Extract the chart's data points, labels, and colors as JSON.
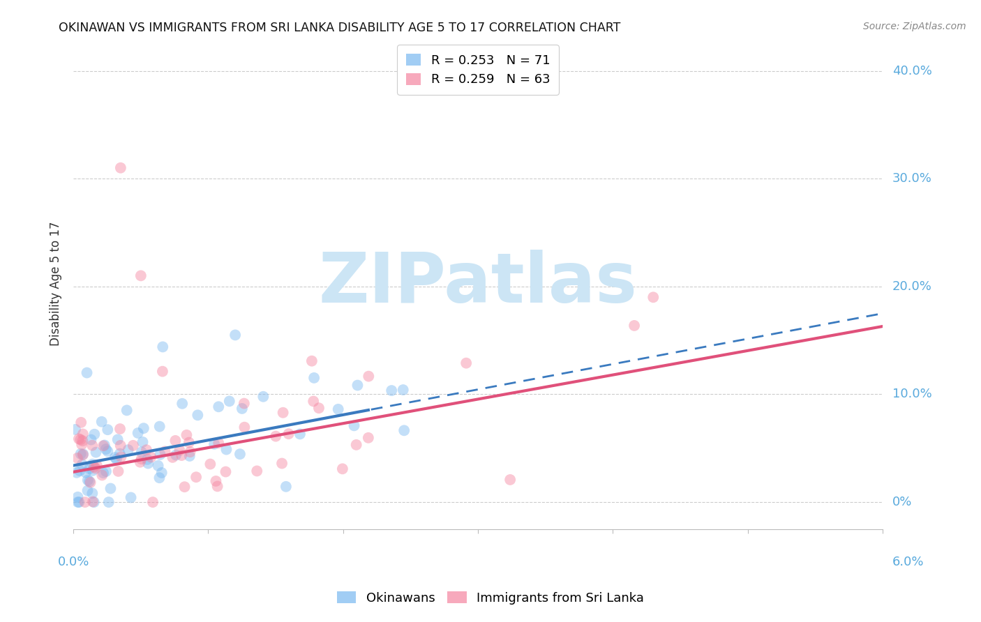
{
  "title": "OKINAWAN VS IMMIGRANTS FROM SRI LANKA DISABILITY AGE 5 TO 17 CORRELATION CHART",
  "source": "Source: ZipAtlas.com",
  "ylabel": "Disability Age 5 to 17",
  "ytick_labels": [
    "0%",
    "10.0%",
    "20.0%",
    "30.0%",
    "40.0%"
  ],
  "ytick_values": [
    0.0,
    0.1,
    0.2,
    0.3,
    0.4
  ],
  "xlim": [
    0.0,
    0.06
  ],
  "ylim": [
    -0.025,
    0.43
  ],
  "watermark_text": "ZIPatlas",
  "watermark_color": "#cce5f5",
  "okinawan_color": "#7ab8f0",
  "srilanka_color": "#f585a0",
  "trendline_okinawan_color": "#3a7abf",
  "trendline_srilanka_color": "#e0507a",
  "background_color": "#ffffff",
  "title_color": "#111111",
  "source_color": "#888888",
  "axis_label_color": "#5aaadd",
  "R_okinawan": 0.253,
  "N_okinawan": 71,
  "R_srilanka": 0.259,
  "N_srilanka": 63,
  "trendline_ok_x0": 0.0,
  "trendline_ok_y0": 0.034,
  "trendline_ok_x1": 0.06,
  "trendline_ok_y1": 0.175,
  "trendline_ok_solid_x1": 0.022,
  "trendline_sl_x0": 0.0,
  "trendline_sl_y0": 0.028,
  "trendline_sl_x1": 0.06,
  "trendline_sl_y1": 0.163
}
